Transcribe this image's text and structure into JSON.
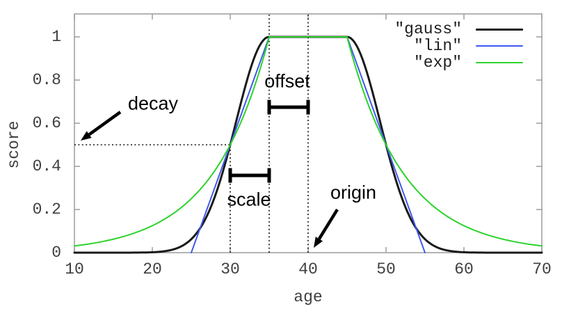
{
  "chart_data": {
    "type": "line",
    "title": "",
    "xlabel": "age",
    "ylabel": "score",
    "xlim": [
      10,
      70
    ],
    "ylim": [
      0,
      1.1
    ],
    "xticks": [
      10,
      20,
      30,
      40,
      50,
      60,
      70
    ],
    "ytick_values": [
      0,
      0.2,
      0.4,
      0.6,
      0.8,
      1
    ],
    "ytick_labels": [
      "0",
      "0.2",
      "0.4",
      "0.6",
      "0.8",
      "1"
    ],
    "grid": false,
    "legend_position": "inside-top-right",
    "frame_color": "#9c9c9c",
    "series": [
      {
        "name": "\"gauss\"",
        "color": "#1a1a1a",
        "function": "gauss",
        "line_width": 3
      },
      {
        "name": "\"lin\"",
        "color": "#4059ef",
        "function": "lin",
        "line_width": 2
      },
      {
        "name": "\"exp\"",
        "color": "#2cd32c",
        "function": "exp",
        "line_width": 2
      }
    ],
    "decay_params": {
      "origin": 40,
      "offset": 5,
      "scale": 5,
      "decay": 0.5
    },
    "sampled_points": {
      "x": [
        10,
        15,
        20,
        25,
        30,
        35,
        40,
        45,
        50,
        55,
        60,
        65,
        70
      ],
      "gauss": [
        0,
        0,
        0.002,
        0.063,
        0.5,
        1,
        1,
        1,
        0.5,
        0.063,
        0.002,
        0,
        0
      ],
      "lin": [
        0,
        0,
        0,
        0,
        0.5,
        1,
        1,
        1,
        0.5,
        0,
        0,
        0,
        0
      ],
      "exp": [
        0.031,
        0.063,
        0.125,
        0.25,
        0.5,
        1,
        1,
        1,
        0.5,
        0.25,
        0.125,
        0.063,
        0.031
      ]
    },
    "guides": {
      "vertical_dotted": [
        {
          "x": 30,
          "from_score": 0,
          "to_score": 0.5
        },
        {
          "x": 35,
          "from_score": 0,
          "to_score": "top"
        },
        {
          "x": 40,
          "from_score": 0,
          "to_score": "top"
        }
      ],
      "horizontal_dotted": {
        "score": 0.5,
        "from_x": 10,
        "to_x": 30
      }
    }
  },
  "annotations": {
    "decay_label": "decay",
    "offset_label": "offset",
    "scale_label": "scale",
    "origin_label": "origin"
  }
}
